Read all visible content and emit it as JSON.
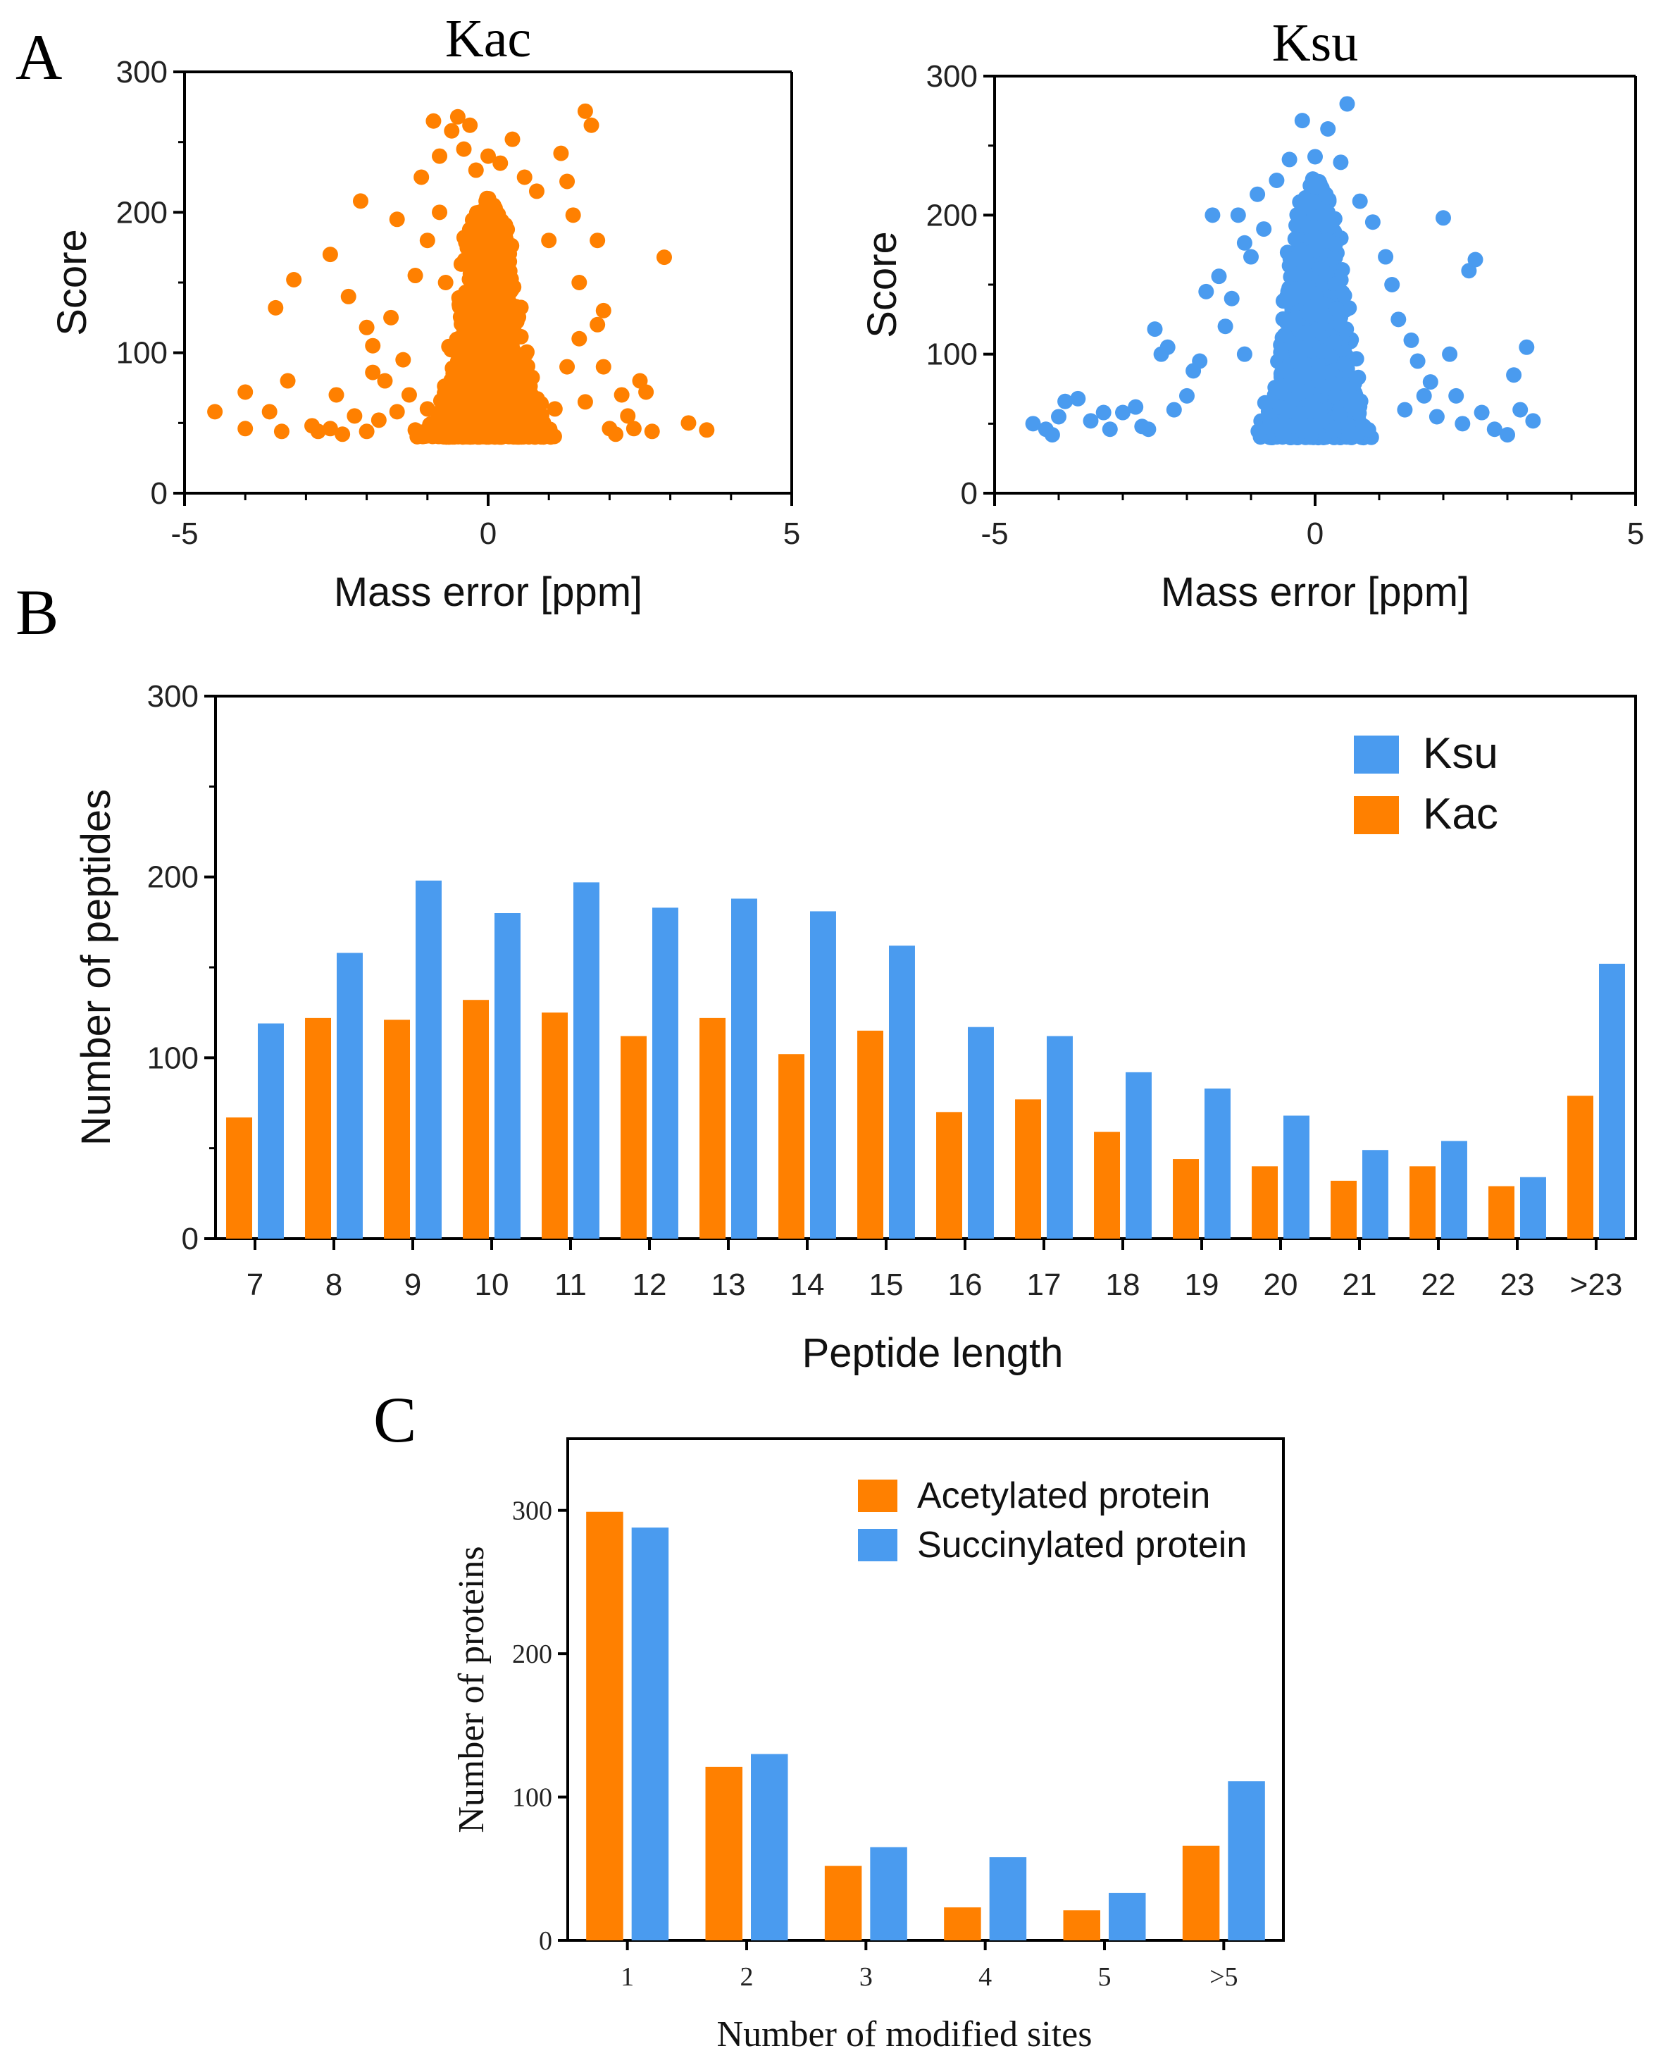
{
  "colors": {
    "kac": "#ff8000",
    "ksu": "#4a9bef",
    "axis": "#000000"
  },
  "panel_labels": {
    "a": "A",
    "b": "B",
    "c": "C"
  },
  "chart_data": [
    {
      "id": "A-left",
      "type": "scatter",
      "title": "Kac",
      "xlabel": "Mass error [ppm]",
      "ylabel": "Score",
      "xlim": [
        -5,
        5
      ],
      "ylim": [
        0,
        300
      ],
      "xticks": [
        "-5",
        "0",
        "5"
      ],
      "yticks": [
        "0",
        "100",
        "200",
        "300"
      ],
      "series": [
        {
          "name": "Kac",
          "color": "#ff8000",
          "points": [
            [
              -4.5,
              58
            ],
            [
              -4.0,
              72
            ],
            [
              -4.0,
              46
            ],
            [
              -3.6,
              58
            ],
            [
              -3.5,
              132
            ],
            [
              -3.4,
              44
            ],
            [
              -3.3,
              80
            ],
            [
              -3.2,
              152
            ],
            [
              -2.9,
              48
            ],
            [
              -2.8,
              44
            ],
            [
              -2.6,
              170
            ],
            [
              -2.6,
              46
            ],
            [
              -2.5,
              70
            ],
            [
              -2.4,
              42
            ],
            [
              -2.3,
              140
            ],
            [
              -2.2,
              55
            ],
            [
              -2.1,
              208
            ],
            [
              -2.0,
              118
            ],
            [
              -2.0,
              44
            ],
            [
              -1.9,
              86
            ],
            [
              -1.8,
              52
            ],
            [
              -1.7,
              80
            ],
            [
              -1.6,
              125
            ],
            [
              -1.5,
              195
            ],
            [
              -1.5,
              58
            ],
            [
              -1.4,
              95
            ],
            [
              -1.3,
              70
            ],
            [
              -1.2,
              155
            ],
            [
              -1.2,
              45
            ],
            [
              -1.1,
              225
            ],
            [
              -1.0,
              180
            ],
            [
              -1.0,
              60
            ],
            [
              -0.9,
              265
            ],
            [
              -0.8,
              240
            ],
            [
              -0.8,
              200
            ],
            [
              -0.7,
              150
            ],
            [
              -0.6,
              258
            ],
            [
              -0.5,
              268
            ],
            [
              -0.4,
              245
            ],
            [
              -0.3,
              262
            ],
            [
              -0.2,
              230
            ],
            [
              0.0,
              240
            ],
            [
              0.2,
              235
            ],
            [
              0.4,
              252
            ],
            [
              0.6,
              225
            ],
            [
              0.8,
              215
            ],
            [
              1.0,
              180
            ],
            [
              1.2,
              242
            ],
            [
              1.3,
              222
            ],
            [
              1.4,
              198
            ],
            [
              1.5,
              150
            ],
            [
              1.6,
              272
            ],
            [
              1.7,
              262
            ],
            [
              1.8,
              120
            ],
            [
              1.8,
              180
            ],
            [
              1.9,
              90
            ],
            [
              2.0,
              46
            ],
            [
              2.1,
              42
            ],
            [
              2.3,
              55
            ],
            [
              2.5,
              80
            ],
            [
              2.6,
              72
            ],
            [
              2.7,
              44
            ],
            [
              2.9,
              168
            ],
            [
              3.3,
              50
            ],
            [
              3.6,
              45
            ],
            [
              1.1,
              60
            ],
            [
              1.3,
              90
            ],
            [
              1.5,
              110
            ],
            [
              1.6,
              65
            ],
            [
              1.9,
              130
            ],
            [
              2.2,
              70
            ],
            [
              2.4,
              46
            ],
            [
              -1.9,
              105
            ]
          ]
        }
      ]
    },
    {
      "id": "A-right",
      "type": "scatter",
      "title": "Ksu",
      "xlabel": "Mass error [ppm]",
      "ylabel": "Score",
      "xlim": [
        -5,
        5
      ],
      "ylim": [
        0,
        300
      ],
      "xticks": [
        "-5",
        "0",
        "5"
      ],
      "yticks": [
        "0",
        "100",
        "200",
        "300"
      ],
      "series": [
        {
          "name": "Ksu",
          "color": "#4a9bef",
          "points": [
            [
              -4.4,
              50
            ],
            [
              -4.2,
              46
            ],
            [
              -4.1,
              42
            ],
            [
              -4.0,
              55
            ],
            [
              -3.9,
              66
            ],
            [
              -3.7,
              68
            ],
            [
              -3.5,
              52
            ],
            [
              -3.3,
              58
            ],
            [
              -3.2,
              46
            ],
            [
              -3.0,
              58
            ],
            [
              -2.8,
              62
            ],
            [
              -2.6,
              46
            ],
            [
              -2.5,
              118
            ],
            [
              -2.4,
              100
            ],
            [
              -2.3,
              105
            ],
            [
              -2.2,
              60
            ],
            [
              -2.0,
              70
            ],
            [
              -1.9,
              88
            ],
            [
              -1.8,
              95
            ],
            [
              -1.7,
              145
            ],
            [
              -1.6,
              200
            ],
            [
              -1.5,
              156
            ],
            [
              -1.4,
              120
            ],
            [
              -1.3,
              140
            ],
            [
              -1.2,
              200
            ],
            [
              -1.1,
              180
            ],
            [
              -1.0,
              170
            ],
            [
              -0.9,
              215
            ],
            [
              -0.8,
              190
            ],
            [
              -0.6,
              225
            ],
            [
              -0.4,
              240
            ],
            [
              -0.2,
              268
            ],
            [
              0.0,
              242
            ],
            [
              0.2,
              262
            ],
            [
              0.4,
              238
            ],
            [
              0.5,
              280
            ],
            [
              0.7,
              210
            ],
            [
              0.9,
              195
            ],
            [
              1.1,
              170
            ],
            [
              1.2,
              150
            ],
            [
              1.3,
              125
            ],
            [
              1.5,
              110
            ],
            [
              1.6,
              95
            ],
            [
              1.8,
              80
            ],
            [
              2.0,
              198
            ],
            [
              2.1,
              100
            ],
            [
              2.2,
              70
            ],
            [
              2.4,
              160
            ],
            [
              2.5,
              168
            ],
            [
              2.6,
              58
            ],
            [
              2.8,
              46
            ],
            [
              3.0,
              42
            ],
            [
              3.1,
              85
            ],
            [
              3.2,
              60
            ],
            [
              3.3,
              105
            ],
            [
              3.4,
              52
            ],
            [
              1.4,
              60
            ],
            [
              1.7,
              70
            ],
            [
              1.9,
              55
            ],
            [
              2.3,
              50
            ],
            [
              -2.7,
              48
            ],
            [
              -1.1,
              100
            ]
          ]
        }
      ]
    },
    {
      "id": "B",
      "type": "bar",
      "xlabel": "Peptide length",
      "ylabel": "Number of peptides",
      "ylim": [
        0,
        300
      ],
      "yticks": [
        "0",
        "100",
        "200",
        "300"
      ],
      "categories": [
        "7",
        "8",
        "9",
        "10",
        "11",
        "12",
        "13",
        "14",
        "15",
        "16",
        "17",
        "18",
        "19",
        "20",
        "21",
        "22",
        "23",
        ">23"
      ],
      "legend": [
        "Ksu",
        "Kac"
      ],
      "series": [
        {
          "name": "Kac",
          "color": "#ff8000",
          "values": [
            67,
            122,
            121,
            132,
            125,
            112,
            122,
            102,
            115,
            70,
            77,
            59,
            44,
            40,
            32,
            40,
            29,
            79
          ]
        },
        {
          "name": "Ksu",
          "color": "#4a9bef",
          "values": [
            119,
            158,
            198,
            180,
            197,
            183,
            188,
            181,
            162,
            117,
            112,
            92,
            83,
            68,
            49,
            54,
            34,
            152
          ]
        }
      ]
    },
    {
      "id": "C",
      "type": "bar",
      "xlabel": "Number of modified sites",
      "ylabel": "Number of proteins",
      "ylim": [
        0,
        350
      ],
      "yticks": [
        "0",
        "100",
        "200",
        "300"
      ],
      "categories": [
        "1",
        "2",
        "3",
        "4",
        "5",
        ">5"
      ],
      "legend": [
        "Acetylated protein",
        "Succinylated protein"
      ],
      "series": [
        {
          "name": "Acetylated protein",
          "color": "#ff8000",
          "values": [
            299,
            121,
            52,
            23,
            21,
            66
          ]
        },
        {
          "name": "Succinylated protein",
          "color": "#4a9bef",
          "values": [
            288,
            130,
            65,
            58,
            33,
            111
          ]
        }
      ]
    }
  ]
}
